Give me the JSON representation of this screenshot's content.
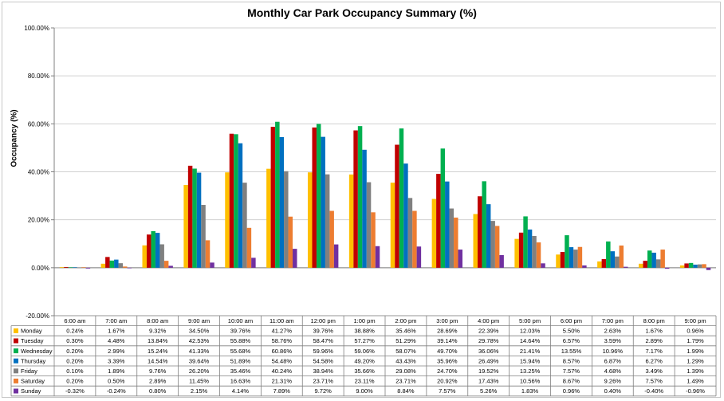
{
  "chart_data": {
    "type": "bar",
    "title": "Monthly Car Park Occupancy Summary (%)",
    "xlabel": "",
    "ylabel": "Occupancy (%)",
    "ylim": [
      -20,
      100
    ],
    "y_ticks": [
      "100.00%",
      "80.00%",
      "60.00%",
      "40.00%",
      "20.00%",
      "0.00%",
      "-20.00%"
    ],
    "grid": true,
    "legend": "data-table",
    "categories": [
      "6:00 am",
      "7:00 am",
      "8:00 am",
      "9:00 am",
      "10:00 am",
      "11:00 am",
      "12:00 pm",
      "1:00 pm",
      "2:00 pm",
      "3:00 pm",
      "4:00 pm",
      "5:00 pm",
      "6:00 pm",
      "7:00 pm",
      "8:00 pm",
      "9:00 pm"
    ],
    "series": [
      {
        "name": "Monday",
        "color": "#FFC000",
        "values": [
          0.24,
          1.67,
          9.32,
          34.5,
          39.76,
          41.27,
          39.76,
          38.88,
          35.46,
          28.69,
          22.39,
          12.03,
          5.5,
          2.63,
          1.67,
          0.96
        ],
        "labels": [
          "0.24%",
          "1.67%",
          "9.32%",
          "34.50%",
          "39.76%",
          "41.27%",
          "39.76%",
          "38.88%",
          "35.46%",
          "28.69%",
          "22.39%",
          "12.03%",
          "5.50%",
          "2.63%",
          "1.67%",
          "0.96%"
        ]
      },
      {
        "name": "Tuesday",
        "color": "#C00000",
        "values": [
          0.3,
          4.48,
          13.84,
          42.53,
          55.88,
          58.76,
          58.47,
          57.27,
          51.29,
          39.14,
          29.78,
          14.64,
          6.57,
          3.59,
          2.89,
          1.79
        ],
        "labels": [
          "0.30%",
          "4.48%",
          "13.84%",
          "42.53%",
          "55.88%",
          "58.76%",
          "58.47%",
          "57.27%",
          "51.29%",
          "39.14%",
          "29.78%",
          "14.64%",
          "6.57%",
          "3.59%",
          "2.89%",
          "1.79%"
        ]
      },
      {
        "name": "Wednesday",
        "color": "#00B050",
        "values": [
          0.2,
          2.99,
          15.24,
          41.33,
          55.68,
          60.86,
          59.96,
          59.06,
          58.07,
          49.7,
          36.06,
          21.41,
          13.55,
          10.96,
          7.17,
          1.99
        ],
        "labels": [
          "0.20%",
          "2.99%",
          "15.24%",
          "41.33%",
          "55.68%",
          "60.86%",
          "59.96%",
          "59.06%",
          "58.07%",
          "49.70%",
          "36.06%",
          "21.41%",
          "13.55%",
          "10.96%",
          "7.17%",
          "1.99%"
        ]
      },
      {
        "name": "Thursday",
        "color": "#0070C0",
        "values": [
          0.2,
          3.39,
          14.54,
          39.64,
          51.89,
          54.48,
          54.58,
          49.2,
          43.43,
          35.96,
          26.49,
          15.94,
          8.57,
          6.87,
          6.27,
          1.29
        ],
        "labels": [
          "0.20%",
          "3.39%",
          "14.54%",
          "39.64%",
          "51.89%",
          "54.48%",
          "54.58%",
          "49.20%",
          "43.43%",
          "35.96%",
          "26.49%",
          "15.94%",
          "8.57%",
          "6.87%",
          "6.27%",
          "1.29%"
        ]
      },
      {
        "name": "Friday",
        "color": "#808080",
        "values": [
          0.1,
          1.89,
          9.76,
          26.2,
          35.46,
          40.24,
          38.94,
          35.66,
          29.08,
          24.7,
          19.52,
          13.25,
          7.57,
          4.68,
          3.49,
          1.39
        ],
        "labels": [
          "0.10%",
          "1.89%",
          "9.76%",
          "26.20%",
          "35.46%",
          "40.24%",
          "38.94%",
          "35.66%",
          "29.08%",
          "24.70%",
          "19.52%",
          "13.25%",
          "7.57%",
          "4.68%",
          "3.49%",
          "1.39%"
        ]
      },
      {
        "name": "Saturday",
        "color": "#ED7D31",
        "values": [
          0.2,
          0.5,
          2.89,
          11.45,
          16.63,
          21.31,
          23.71,
          23.11,
          23.71,
          20.92,
          17.43,
          10.56,
          8.67,
          9.26,
          7.57,
          1.49
        ],
        "labels": [
          "0.20%",
          "0.50%",
          "2.89%",
          "11.45%",
          "16.63%",
          "21.31%",
          "23.71%",
          "23.11%",
          "23.71%",
          "20.92%",
          "17.43%",
          "10.56%",
          "8.67%",
          "9.26%",
          "7.57%",
          "1.49%"
        ]
      },
      {
        "name": "Sunday",
        "color": "#7030A0",
        "values": [
          -0.32,
          -0.24,
          0.8,
          2.15,
          4.14,
          7.89,
          9.72,
          9.0,
          8.84,
          7.57,
          5.26,
          1.83,
          0.96,
          0.4,
          -0.4,
          -0.96
        ],
        "labels": [
          "-0.32%",
          "-0.24%",
          "0.80%",
          "2.15%",
          "4.14%",
          "7.89%",
          "9.72%",
          "9.00%",
          "8.84%",
          "7.57%",
          "5.26%",
          "1.83%",
          "0.96%",
          "0.40%",
          "-0.40%",
          "-0.96%"
        ]
      }
    ]
  }
}
